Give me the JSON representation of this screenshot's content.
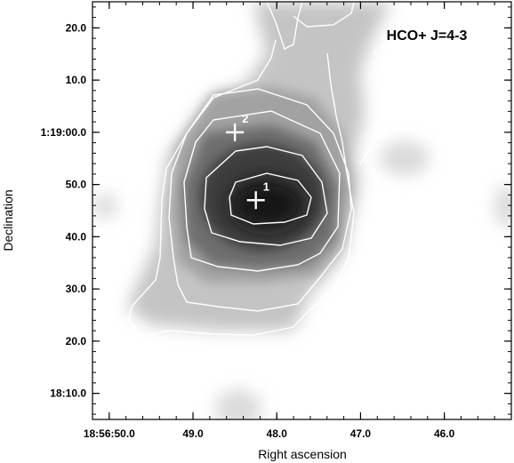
{
  "chart_data": {
    "type": "heatmap",
    "title": "HCO+ J=4-3",
    "xlabel": "Right ascension",
    "ylabel": "Declination",
    "x_ticks": [
      "18:56:50.0",
      "49.0",
      "48.0",
      "47.0",
      "46.0"
    ],
    "x_tick_values_s": [
      50.0,
      49.0,
      48.0,
      47.0,
      46.0
    ],
    "y_ticks": [
      "18:10.0",
      "20.0",
      "30.0",
      "40.0",
      "50.0",
      "1:19:00.0",
      "10.0",
      "20.0"
    ],
    "y_tick_values_arcsec": [
      10,
      20,
      30,
      40,
      50,
      60,
      70,
      80
    ],
    "x_range_s": [
      50.2,
      45.2
    ],
    "y_range_arcsec": [
      5,
      85
    ],
    "grid": false,
    "colormap": "grayscale, darker = stronger emission",
    "peak": {
      "ra_s": 48.3,
      "dec_arcsec": 48
    },
    "sources": [
      {
        "label": "1",
        "ra_s": 48.25,
        "dec_arcsec": 47
      },
      {
        "label": "2",
        "ra_s": 48.5,
        "dec_arcsec": 60
      }
    ],
    "contour_count": 5
  }
}
